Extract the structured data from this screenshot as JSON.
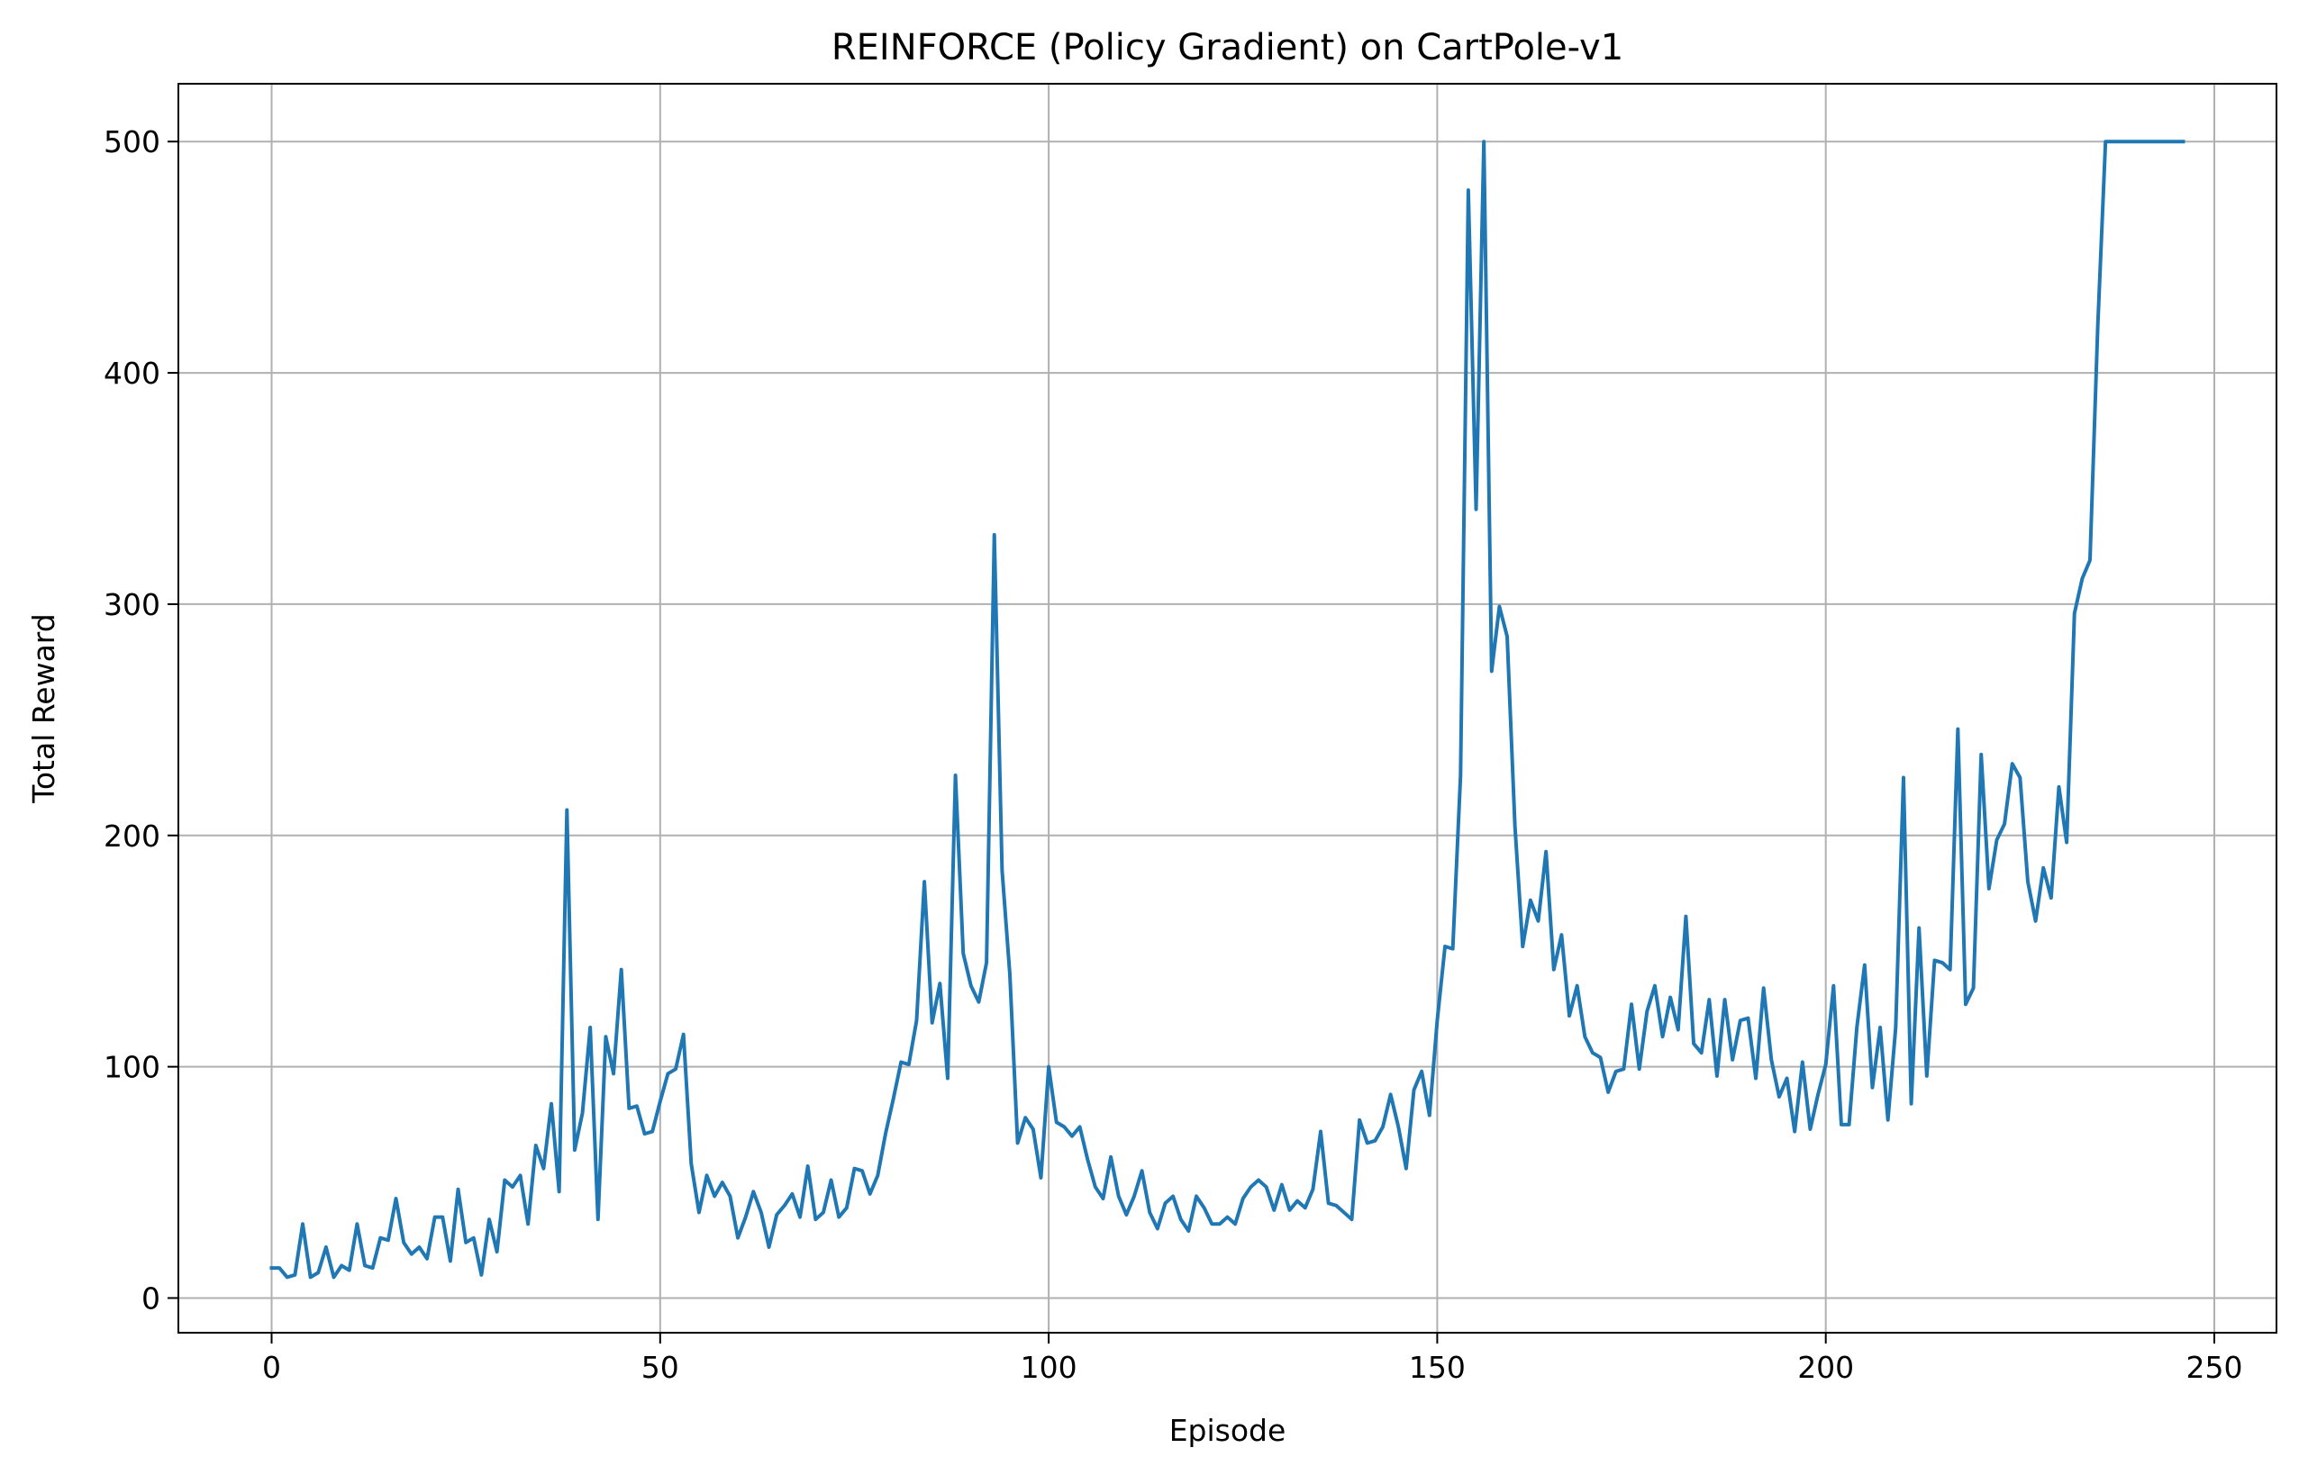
{
  "chart_data": {
    "type": "line",
    "title": "REINFORCE (Policy Gradient) on CartPole-v1",
    "xlabel": "Episode",
    "ylabel": "Total Reward",
    "xlim": [
      -12,
      258
    ],
    "ylim": [
      -15,
      525
    ],
    "xticks": [
      0,
      50,
      100,
      150,
      200,
      250
    ],
    "yticks": [
      0,
      100,
      200,
      300,
      400,
      500
    ],
    "grid": true,
    "colors": {
      "line": "#1f77b4",
      "grid": "#b0b0b0",
      "axes": "#000000"
    },
    "series": [
      {
        "values": [
          13,
          13,
          9,
          10,
          32,
          9,
          11,
          22,
          9,
          14,
          12,
          32,
          14,
          13,
          26,
          25,
          43,
          24,
          19,
          22,
          17,
          35,
          35,
          16,
          47,
          24,
          26,
          10,
          34,
          20,
          51,
          48,
          53,
          32,
          66,
          56,
          84,
          46,
          211,
          64,
          80,
          117,
          34,
          113,
          97,
          142,
          82,
          83,
          71,
          72,
          85,
          97,
          99,
          114,
          58,
          37,
          53,
          44,
          50,
          44,
          26,
          35,
          46,
          37,
          22,
          36,
          40,
          45,
          35,
          57,
          34,
          37,
          51,
          35,
          39,
          56,
          55,
          45,
          53,
          71,
          86,
          102,
          101,
          120,
          180,
          119,
          136,
          95,
          226,
          149,
          135,
          128,
          145,
          330,
          185,
          140,
          67,
          78,
          73,
          52,
          100,
          76,
          74,
          70,
          74,
          60,
          48,
          43,
          61,
          44,
          36,
          44,
          55,
          37,
          30,
          41,
          44,
          34,
          29,
          44,
          39,
          32,
          32,
          35,
          32,
          43,
          48,
          51,
          48,
          38,
          49,
          38,
          42,
          39,
          47,
          72,
          41,
          40,
          37,
          34,
          77,
          67,
          68,
          74,
          88,
          74,
          56,
          90,
          98,
          79,
          120,
          152,
          151,
          226,
          479,
          341,
          500,
          271,
          299,
          286,
          204,
          152,
          172,
          163,
          193,
          142,
          157,
          122,
          135,
          113,
          106,
          104,
          89,
          98,
          99,
          127,
          99,
          124,
          135,
          113,
          130,
          116,
          165,
          110,
          106,
          129,
          96,
          129,
          103,
          120,
          121,
          95,
          134,
          103,
          87,
          95,
          72,
          102,
          73,
          88,
          101,
          135,
          75,
          75,
          117,
          144,
          91,
          117,
          77,
          117,
          225,
          84,
          160,
          96,
          146,
          145,
          142,
          246,
          127,
          134,
          235,
          177,
          198,
          205,
          231,
          225,
          180,
          163,
          186,
          173,
          221,
          197,
          296,
          311,
          319,
          420,
          500,
          500,
          500,
          500,
          500,
          500,
          500,
          500,
          500,
          500,
          500
        ]
      }
    ]
  }
}
